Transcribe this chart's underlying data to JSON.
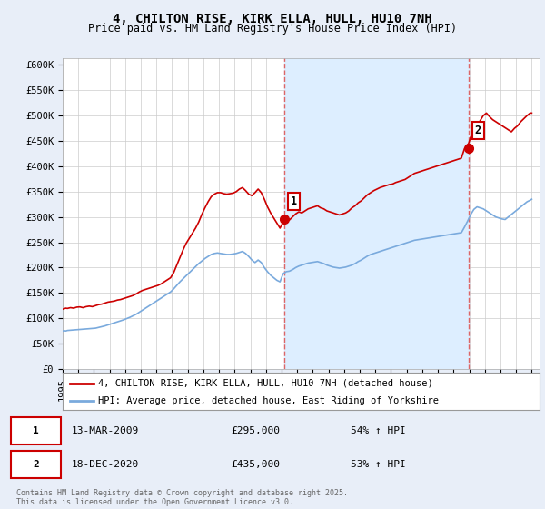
{
  "title": "4, CHILTON RISE, KIRK ELLA, HULL, HU10 7NH",
  "subtitle": "Price paid vs. HM Land Registry's House Price Index (HPI)",
  "xlim_start": 1995.0,
  "xlim_end": 2025.5,
  "ylim": [
    0,
    612500
  ],
  "yticks": [
    0,
    50000,
    100000,
    150000,
    200000,
    250000,
    300000,
    350000,
    400000,
    450000,
    500000,
    550000,
    600000
  ],
  "ytick_labels": [
    "£0",
    "£50K",
    "£100K",
    "£150K",
    "£200K",
    "£250K",
    "£300K",
    "£350K",
    "£400K",
    "£450K",
    "£500K",
    "£550K",
    "£600K"
  ],
  "red_color": "#cc0000",
  "blue_color": "#7aaadd",
  "vline_color": "#dd6666",
  "shade_color": "#ddeeff",
  "background_color": "#e8eef8",
  "plot_bg_color": "#ffffff",
  "sale1_x": 2009.19,
  "sale1_y": 295000,
  "sale1_label": "1",
  "sale2_x": 2020.96,
  "sale2_y": 435000,
  "sale2_label": "2",
  "legend_entry1": "4, CHILTON RISE, KIRK ELLA, HULL, HU10 7NH (detached house)",
  "legend_entry2": "HPI: Average price, detached house, East Riding of Yorkshire",
  "table_row1": [
    "1",
    "13-MAR-2009",
    "£295,000",
    "54% ↑ HPI"
  ],
  "table_row2": [
    "2",
    "18-DEC-2020",
    "£435,000",
    "53% ↑ HPI"
  ],
  "footer": "Contains HM Land Registry data © Crown copyright and database right 2025.\nThis data is licensed under the Open Government Licence v3.0.",
  "title_fontsize": 10,
  "subtitle_fontsize": 8.5,
  "tick_fontsize": 7.5,
  "legend_fontsize": 7.5,
  "table_fontsize": 8,
  "footer_fontsize": 6,
  "red_hpi_data": {
    "years": [
      1995.0,
      1995.1,
      1995.2,
      1995.3,
      1995.5,
      1995.7,
      1995.9,
      1996.1,
      1996.3,
      1996.5,
      1996.7,
      1996.9,
      1997.1,
      1997.3,
      1997.5,
      1997.7,
      1997.9,
      1998.1,
      1998.3,
      1998.5,
      1998.7,
      1998.9,
      1999.1,
      1999.3,
      1999.5,
      1999.7,
      1999.9,
      2000.1,
      2000.3,
      2000.5,
      2000.7,
      2000.9,
      2001.1,
      2001.3,
      2001.5,
      2001.7,
      2001.9,
      2002.1,
      2002.3,
      2002.5,
      2002.7,
      2002.9,
      2003.1,
      2003.3,
      2003.5,
      2003.7,
      2003.9,
      2004.1,
      2004.3,
      2004.5,
      2004.7,
      2004.9,
      2005.1,
      2005.3,
      2005.5,
      2005.7,
      2005.9,
      2006.1,
      2006.3,
      2006.5,
      2006.7,
      2006.9,
      2007.1,
      2007.3,
      2007.5,
      2007.7,
      2007.9,
      2008.1,
      2008.3,
      2008.5,
      2008.7,
      2008.9,
      2009.19,
      2009.3,
      2009.5,
      2009.7,
      2009.9,
      2010.1,
      2010.3,
      2010.5,
      2010.7,
      2010.9,
      2011.1,
      2011.3,
      2011.5,
      2011.7,
      2011.9,
      2012.1,
      2012.3,
      2012.5,
      2012.7,
      2012.9,
      2013.1,
      2013.3,
      2013.5,
      2013.7,
      2013.9,
      2014.1,
      2014.3,
      2014.5,
      2014.7,
      2014.9,
      2015.1,
      2015.3,
      2015.5,
      2015.7,
      2015.9,
      2016.1,
      2016.3,
      2016.5,
      2016.7,
      2016.9,
      2017.1,
      2017.3,
      2017.5,
      2017.7,
      2017.9,
      2018.1,
      2018.3,
      2018.5,
      2018.7,
      2018.9,
      2019.1,
      2019.3,
      2019.5,
      2019.7,
      2019.9,
      2020.1,
      2020.3,
      2020.5,
      2020.7,
      2020.96,
      2021.1,
      2021.3,
      2021.5,
      2021.7,
      2021.9,
      2022.1,
      2022.3,
      2022.5,
      2022.7,
      2022.9,
      2023.1,
      2023.3,
      2023.5,
      2023.7,
      2023.9,
      2024.1,
      2024.3,
      2024.5,
      2024.7,
      2024.9,
      2025.0
    ],
    "values": [
      118000,
      119000,
      120000,
      119500,
      121000,
      120000,
      122000,
      122500,
      121000,
      123000,
      124000,
      123000,
      125000,
      127000,
      128000,
      130000,
      132000,
      133000,
      134000,
      136000,
      137000,
      139000,
      141000,
      143000,
      145000,
      148000,
      152000,
      155000,
      157000,
      159000,
      161000,
      163000,
      165000,
      168000,
      172000,
      176000,
      180000,
      190000,
      205000,
      220000,
      235000,
      248000,
      258000,
      268000,
      278000,
      290000,
      305000,
      318000,
      330000,
      340000,
      345000,
      348000,
      348000,
      346000,
      345000,
      346000,
      347000,
      350000,
      355000,
      358000,
      352000,
      345000,
      342000,
      348000,
      355000,
      348000,
      335000,
      320000,
      308000,
      298000,
      288000,
      278000,
      295000,
      298000,
      294000,
      300000,
      306000,
      310000,
      308000,
      312000,
      316000,
      318000,
      320000,
      322000,
      318000,
      316000,
      312000,
      310000,
      308000,
      306000,
      304000,
      306000,
      308000,
      312000,
      318000,
      322000,
      328000,
      332000,
      338000,
      344000,
      348000,
      352000,
      355000,
      358000,
      360000,
      362000,
      364000,
      365000,
      368000,
      370000,
      372000,
      374000,
      378000,
      382000,
      386000,
      388000,
      390000,
      392000,
      394000,
      396000,
      398000,
      400000,
      402000,
      404000,
      406000,
      408000,
      410000,
      412000,
      414000,
      416000,
      435000,
      445000,
      458000,
      470000,
      480000,
      490000,
      500000,
      505000,
      498000,
      492000,
      488000,
      484000,
      480000,
      476000,
      472000,
      468000,
      475000,
      480000,
      488000,
      494000,
      500000,
      505000,
      505000
    ]
  },
  "blue_hpi_data": {
    "years": [
      1995.0,
      1995.1,
      1995.2,
      1995.3,
      1995.5,
      1995.7,
      1995.9,
      1996.1,
      1996.3,
      1996.5,
      1996.7,
      1996.9,
      1997.1,
      1997.3,
      1997.5,
      1997.7,
      1997.9,
      1998.1,
      1998.3,
      1998.5,
      1998.7,
      1998.9,
      1999.1,
      1999.3,
      1999.5,
      1999.7,
      1999.9,
      2000.1,
      2000.3,
      2000.5,
      2000.7,
      2000.9,
      2001.1,
      2001.3,
      2001.5,
      2001.7,
      2001.9,
      2002.1,
      2002.3,
      2002.5,
      2002.7,
      2002.9,
      2003.1,
      2003.3,
      2003.5,
      2003.7,
      2003.9,
      2004.1,
      2004.3,
      2004.5,
      2004.7,
      2004.9,
      2005.1,
      2005.3,
      2005.5,
      2005.7,
      2005.9,
      2006.1,
      2006.3,
      2006.5,
      2006.7,
      2006.9,
      2007.1,
      2007.3,
      2007.5,
      2007.7,
      2007.9,
      2008.1,
      2008.3,
      2008.5,
      2008.7,
      2008.9,
      2009.1,
      2009.3,
      2009.5,
      2009.7,
      2009.9,
      2010.1,
      2010.3,
      2010.5,
      2010.7,
      2010.9,
      2011.1,
      2011.3,
      2011.5,
      2011.7,
      2011.9,
      2012.1,
      2012.3,
      2012.5,
      2012.7,
      2012.9,
      2013.1,
      2013.3,
      2013.5,
      2013.7,
      2013.9,
      2014.1,
      2014.3,
      2014.5,
      2014.7,
      2014.9,
      2015.1,
      2015.3,
      2015.5,
      2015.7,
      2015.9,
      2016.1,
      2016.3,
      2016.5,
      2016.7,
      2016.9,
      2017.1,
      2017.3,
      2017.5,
      2017.7,
      2017.9,
      2018.1,
      2018.3,
      2018.5,
      2018.7,
      2018.9,
      2019.1,
      2019.3,
      2019.5,
      2019.7,
      2019.9,
      2020.1,
      2020.3,
      2020.5,
      2020.7,
      2020.9,
      2021.1,
      2021.3,
      2021.5,
      2021.7,
      2021.9,
      2022.1,
      2022.3,
      2022.5,
      2022.7,
      2022.9,
      2023.1,
      2023.3,
      2023.5,
      2023.7,
      2023.9,
      2024.1,
      2024.3,
      2024.5,
      2024.7,
      2024.9,
      2025.0
    ],
    "values": [
      75000,
      75500,
      75000,
      76000,
      76500,
      77000,
      77500,
      78000,
      78500,
      79000,
      79500,
      80000,
      80500,
      82000,
      83500,
      85000,
      87000,
      89000,
      91000,
      93000,
      95000,
      97000,
      99500,
      102000,
      105000,
      108000,
      112000,
      116000,
      120000,
      124000,
      128000,
      132000,
      136000,
      140000,
      144000,
      148000,
      152000,
      158000,
      165000,
      172000,
      178000,
      184000,
      190000,
      196000,
      202000,
      208000,
      213000,
      218000,
      222000,
      226000,
      228000,
      229000,
      228000,
      227000,
      226000,
      226000,
      227000,
      228000,
      230000,
      232000,
      228000,
      222000,
      215000,
      210000,
      215000,
      210000,
      200000,
      192000,
      185000,
      180000,
      175000,
      172000,
      188000,
      192000,
      193000,
      196000,
      200000,
      203000,
      205000,
      207000,
      209000,
      210000,
      211000,
      212000,
      210000,
      208000,
      205000,
      203000,
      201000,
      200000,
      199000,
      200000,
      201000,
      203000,
      205000,
      208000,
      212000,
      215000,
      219000,
      223000,
      226000,
      228000,
      230000,
      232000,
      234000,
      236000,
      238000,
      240000,
      242000,
      244000,
      246000,
      248000,
      250000,
      252000,
      254000,
      255000,
      256000,
      257000,
      258000,
      259000,
      260000,
      261000,
      262000,
      263000,
      264000,
      265000,
      266000,
      267000,
      268000,
      269000,
      280000,
      292000,
      305000,
      315000,
      320000,
      318000,
      316000,
      312000,
      308000,
      304000,
      300000,
      298000,
      296000,
      295000,
      300000,
      305000,
      310000,
      315000,
      320000,
      325000,
      330000,
      333000,
      335000
    ]
  }
}
